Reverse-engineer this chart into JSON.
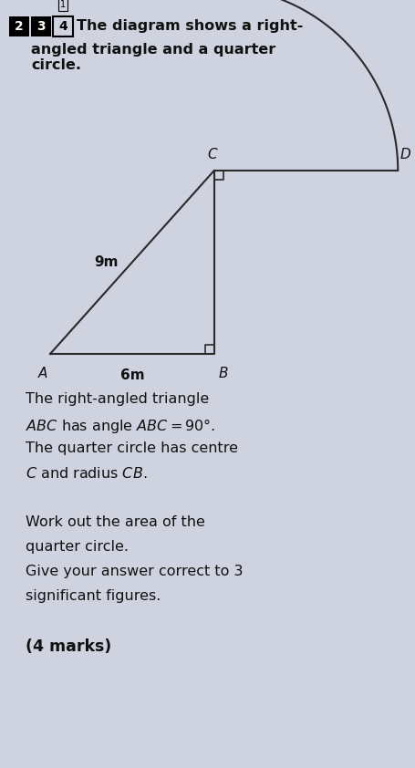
{
  "bg_color": "#cfd3df",
  "line_color": "#2a2a2a",
  "text_color": "#111111",
  "fig_width": 4.56,
  "fig_height": 8.42,
  "label_A": "A",
  "label_B": "B",
  "label_C": "C",
  "label_D": "D",
  "label_9m": "9m",
  "label_6m": "6m",
  "header_line1": "The diagram shows a right-",
  "header_line2": "angled triangle and a quarter",
  "header_line3": "circle.",
  "body_lines": [
    [
      "The right-angled triangle",
      "normal",
      11.5
    ],
    [
      "$ABC$ has angle $ABC = 90\\degree$.",
      "normal",
      11.5
    ],
    [
      "The quarter circle has centre",
      "normal",
      11.5
    ],
    [
      "$C$ and radius $CB$.",
      "normal",
      11.5
    ],
    [
      "",
      "normal",
      11.5
    ],
    [
      "Work out the area of the",
      "normal",
      11.5
    ],
    [
      "quarter circle.",
      "normal",
      11.5
    ],
    [
      "Give your answer correct to 3",
      "normal",
      11.5
    ],
    [
      "significant figures.",
      "normal",
      11.5
    ],
    [
      "",
      "normal",
      11.5
    ],
    [
      "(4 marks)",
      "bold",
      12.5
    ]
  ]
}
